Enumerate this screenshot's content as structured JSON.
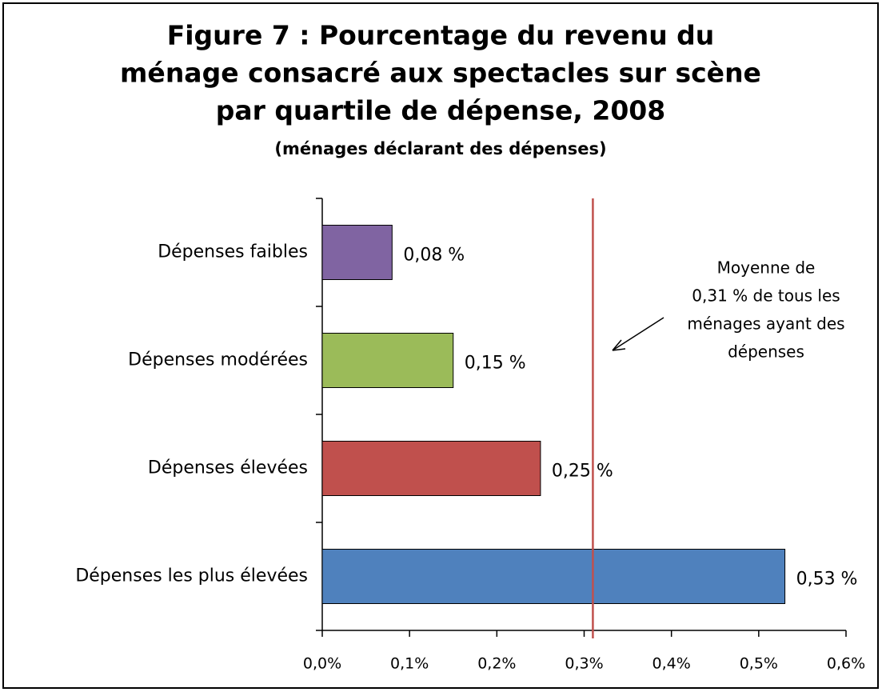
{
  "chart_data": {
    "type": "bar",
    "orientation": "horizontal",
    "title": [
      "Figure 7 : Pourcentage du revenu du",
      "ménage consacré aux spectacles sur scène",
      "par quartile de dépense, 2008"
    ],
    "subtitle": "(ménages déclarant des dépenses)",
    "categories": [
      "Dépenses faibles",
      "Dépenses modérées",
      "Dépenses élevées",
      "Dépenses les plus élevées"
    ],
    "values": [
      0.08,
      0.15,
      0.25,
      0.53
    ],
    "value_labels": [
      "0,08 %",
      "0,15 %",
      "0,25 %",
      "0,53 %"
    ],
    "colors": [
      "#8064a2",
      "#9bbb59",
      "#c0504d",
      "#4f81bd"
    ],
    "xlim": [
      0,
      0.6
    ],
    "xticks": [
      {
        "value": 0,
        "label": "0,0%"
      },
      {
        "value": 0.1,
        "label": "0,1%"
      },
      {
        "value": 0.2,
        "label": "0,2%"
      },
      {
        "value": 0.3,
        "label": "0,3%"
      },
      {
        "value": 0.4,
        "label": "0,4%"
      },
      {
        "value": 0.5,
        "label": "0,5%"
      },
      {
        "value": 0.6,
        "label": "0,6%"
      }
    ],
    "reference_line": {
      "value": 0.31,
      "color": "#c0504d",
      "label": [
        "Moyenne de",
        "0,31 % de tous les",
        "ménages ayant des",
        "dépenses"
      ]
    }
  }
}
